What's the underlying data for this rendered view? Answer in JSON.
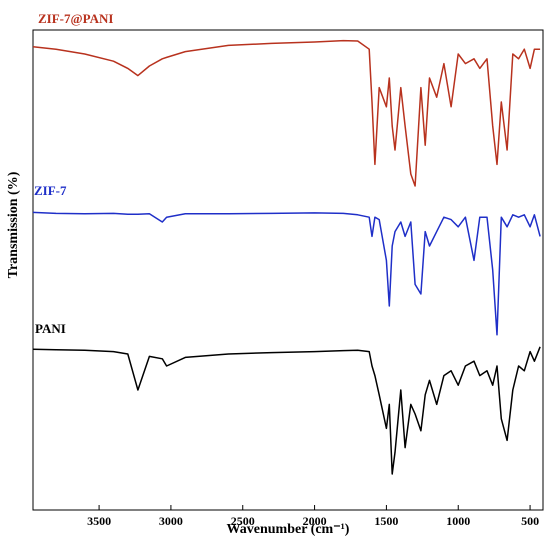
{
  "chart_data": {
    "type": "line",
    "x_label": "Wavenumber (cm⁻¹)",
    "y_label": "Transmission (%)",
    "x": [
      3960,
      3800,
      3600,
      3400,
      3300,
      3230,
      3150,
      3060,
      3030,
      2900,
      2600,
      2300,
      2000,
      1800,
      1700,
      1620,
      1600,
      1580,
      1550,
      1500,
      1480,
      1460,
      1440,
      1400,
      1370,
      1330,
      1300,
      1260,
      1230,
      1200,
      1150,
      1100,
      1050,
      1000,
      950,
      890,
      850,
      800,
      760,
      730,
      700,
      660,
      620,
      580,
      540,
      500,
      470,
      430
    ],
    "series": [
      {
        "name": "ZIF-7@PANI",
        "color": "#b8321e",
        "values": [
          96.5,
          96,
          95,
          93.5,
          92,
          90.5,
          92.5,
          94,
          94.3,
          95.5,
          96.8,
          97.2,
          97.5,
          97.8,
          97.7,
          96,
          85,
          72,
          88,
          84,
          90,
          80,
          75,
          88,
          80,
          70,
          67.5,
          88,
          76,
          90,
          86,
          93,
          84,
          95,
          93,
          94,
          92,
          94,
          80,
          72,
          85,
          75,
          95,
          94,
          96,
          92,
          96,
          96
        ]
      },
      {
        "name": "ZIF-7",
        "color": "#1f2fc8",
        "values": [
          62,
          61.8,
          61.7,
          61.8,
          61.6,
          61.6,
          61.7,
          60,
          61,
          61.7,
          61.7,
          61.8,
          61.9,
          61.8,
          61.5,
          61,
          57,
          61,
          60.5,
          52,
          42.5,
          55,
          58,
          60,
          57,
          60,
          47,
          45,
          58,
          55,
          58,
          61,
          60.5,
          59,
          61,
          52,
          61,
          61,
          50,
          36.5,
          61,
          59,
          61.5,
          61,
          61.5,
          59,
          61.5,
          57
        ]
      },
      {
        "name": "PANI",
        "color": "#000000",
        "values": [
          33.5,
          33.4,
          33.3,
          33,
          32.5,
          25,
          32,
          31.5,
          30,
          31.8,
          32.5,
          32.8,
          33,
          33.2,
          33.3,
          33,
          30,
          28,
          24,
          17,
          22,
          7.5,
          12,
          25,
          13,
          22,
          20,
          16.5,
          24,
          27,
          22,
          28,
          29,
          26,
          30,
          31,
          28,
          29,
          26,
          30,
          19,
          14.5,
          25,
          30,
          29,
          33,
          31,
          34
        ]
      }
    ],
    "xlim": [
      3960,
      410
    ],
    "ylim": [
      0,
      100
    ],
    "xticks": [
      3500,
      3000,
      2500,
      2000,
      1500,
      1000,
      500
    ]
  }
}
